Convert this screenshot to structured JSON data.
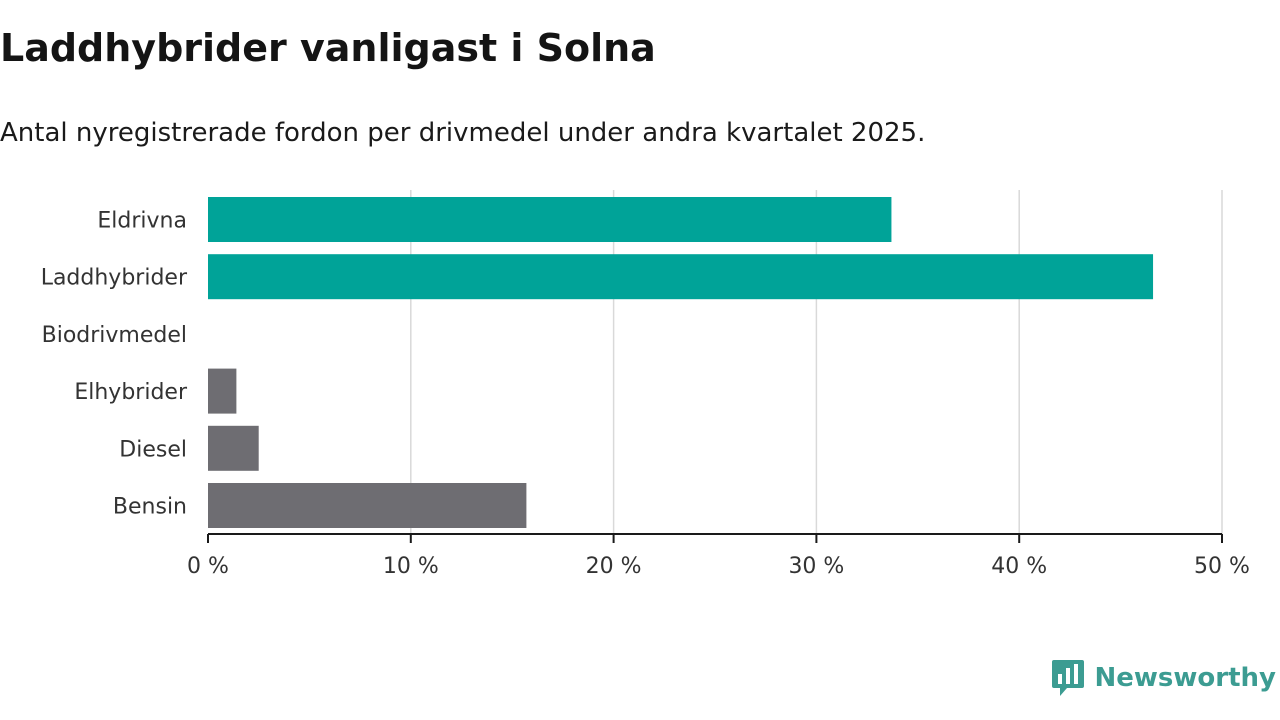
{
  "header": {
    "title": "Laddhybrider vanligast i Solna",
    "subtitle": "Antal nyregistrerade fordon per drivmedel under andra kvartalet 2025."
  },
  "brand": {
    "name": "Newsworthy",
    "logo_icon": "bar-chart-speech-bubble-icon",
    "color": "#3c9c92"
  },
  "colors": {
    "highlight": "#00a398",
    "default": "#6e6d72",
    "grid": "#d9d9d9",
    "axis": "#1a1a1a"
  },
  "chart_data": {
    "type": "bar",
    "orientation": "horizontal",
    "categories": [
      "Eldrivna",
      "Laddhybrider",
      "Biodrivmedel",
      "Elhybrider",
      "Diesel",
      "Bensin"
    ],
    "values": [
      33.7,
      46.6,
      0,
      1.4,
      2.5,
      15.7
    ],
    "highlighted": [
      true,
      true,
      false,
      false,
      false,
      false
    ],
    "xlim": [
      0,
      50
    ],
    "xticks": [
      0,
      10,
      20,
      30,
      40,
      50
    ],
    "tick_suffix": " %",
    "grid": true,
    "legend": "none"
  }
}
